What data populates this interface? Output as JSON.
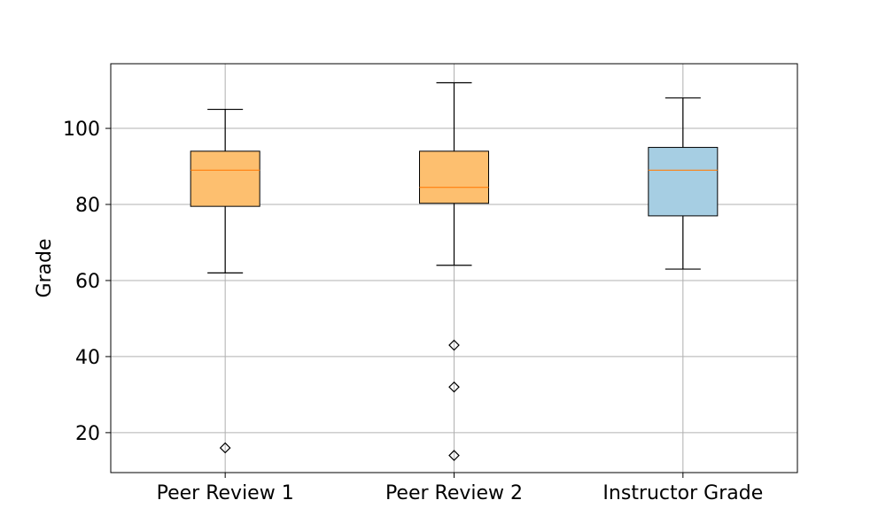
{
  "chart_data": {
    "type": "box",
    "title": "",
    "xlabel": "",
    "ylabel": "Grade",
    "ylim": [
      9.5,
      117
    ],
    "yticks": [
      20,
      40,
      60,
      80,
      100
    ],
    "grid": true,
    "categories": [
      "Peer Review 1",
      "Peer Review 2",
      "Instructor Grade"
    ],
    "boxes": [
      {
        "name": "Peer Review 1",
        "whisker_low": 62,
        "q1": 79.5,
        "median": 89,
        "q3": 94,
        "whisker_high": 105,
        "fliers": [
          16
        ],
        "fill": "#fdbf6f"
      },
      {
        "name": "Peer Review 2",
        "whisker_low": 64,
        "q1": 80.3,
        "median": 84.5,
        "q3": 94,
        "whisker_high": 112,
        "fliers": [
          43,
          32,
          14
        ],
        "fill": "#fdbf6f"
      },
      {
        "name": "Instructor Grade",
        "whisker_low": 63,
        "q1": 77,
        "median": 89,
        "q3": 95,
        "whisker_high": 108,
        "fliers": [],
        "fill": "#a6cee3"
      }
    ],
    "median_color": "#ff7f0e"
  }
}
